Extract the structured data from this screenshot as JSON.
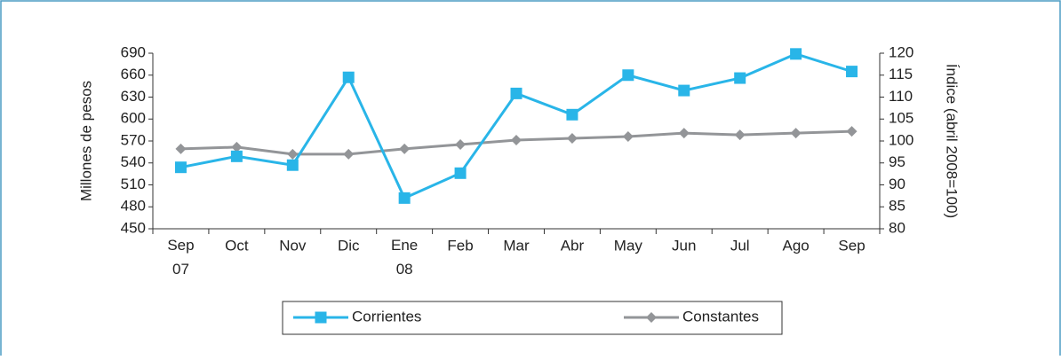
{
  "chart_data": {
    "type": "line",
    "categories": [
      "Sep 07",
      "Oct",
      "Nov",
      "Dic",
      "Ene 08",
      "Feb",
      "Mar",
      "Abr",
      "May",
      "Jun",
      "Jul",
      "Ago",
      "Sep"
    ],
    "ylabel": "Millones de pesos",
    "y2label": "Índice (abril 2008=100)",
    "ylim": [
      450,
      690
    ],
    "yticks": [
      450,
      480,
      510,
      540,
      570,
      600,
      630,
      660,
      690
    ],
    "y2lim": [
      80,
      120
    ],
    "y2ticks": [
      80,
      85,
      90,
      95,
      100,
      105,
      110,
      115,
      120
    ],
    "legend": "bottom",
    "series": [
      {
        "name": "Corrientes",
        "color": "#29b5e8",
        "marker": "square",
        "values": [
          534,
          549,
          537,
          657,
          492,
          526,
          635,
          606,
          660,
          639,
          656,
          689,
          665
        ]
      },
      {
        "name": "Constantes",
        "color": "#939598",
        "marker": "diamond",
        "axis": "y2",
        "values": [
          98.2,
          98.6,
          97.0,
          97.0,
          98.2,
          99.2,
          100.2,
          100.6,
          101.0,
          101.8,
          101.4,
          101.8,
          102.2
        ]
      }
    ]
  }
}
